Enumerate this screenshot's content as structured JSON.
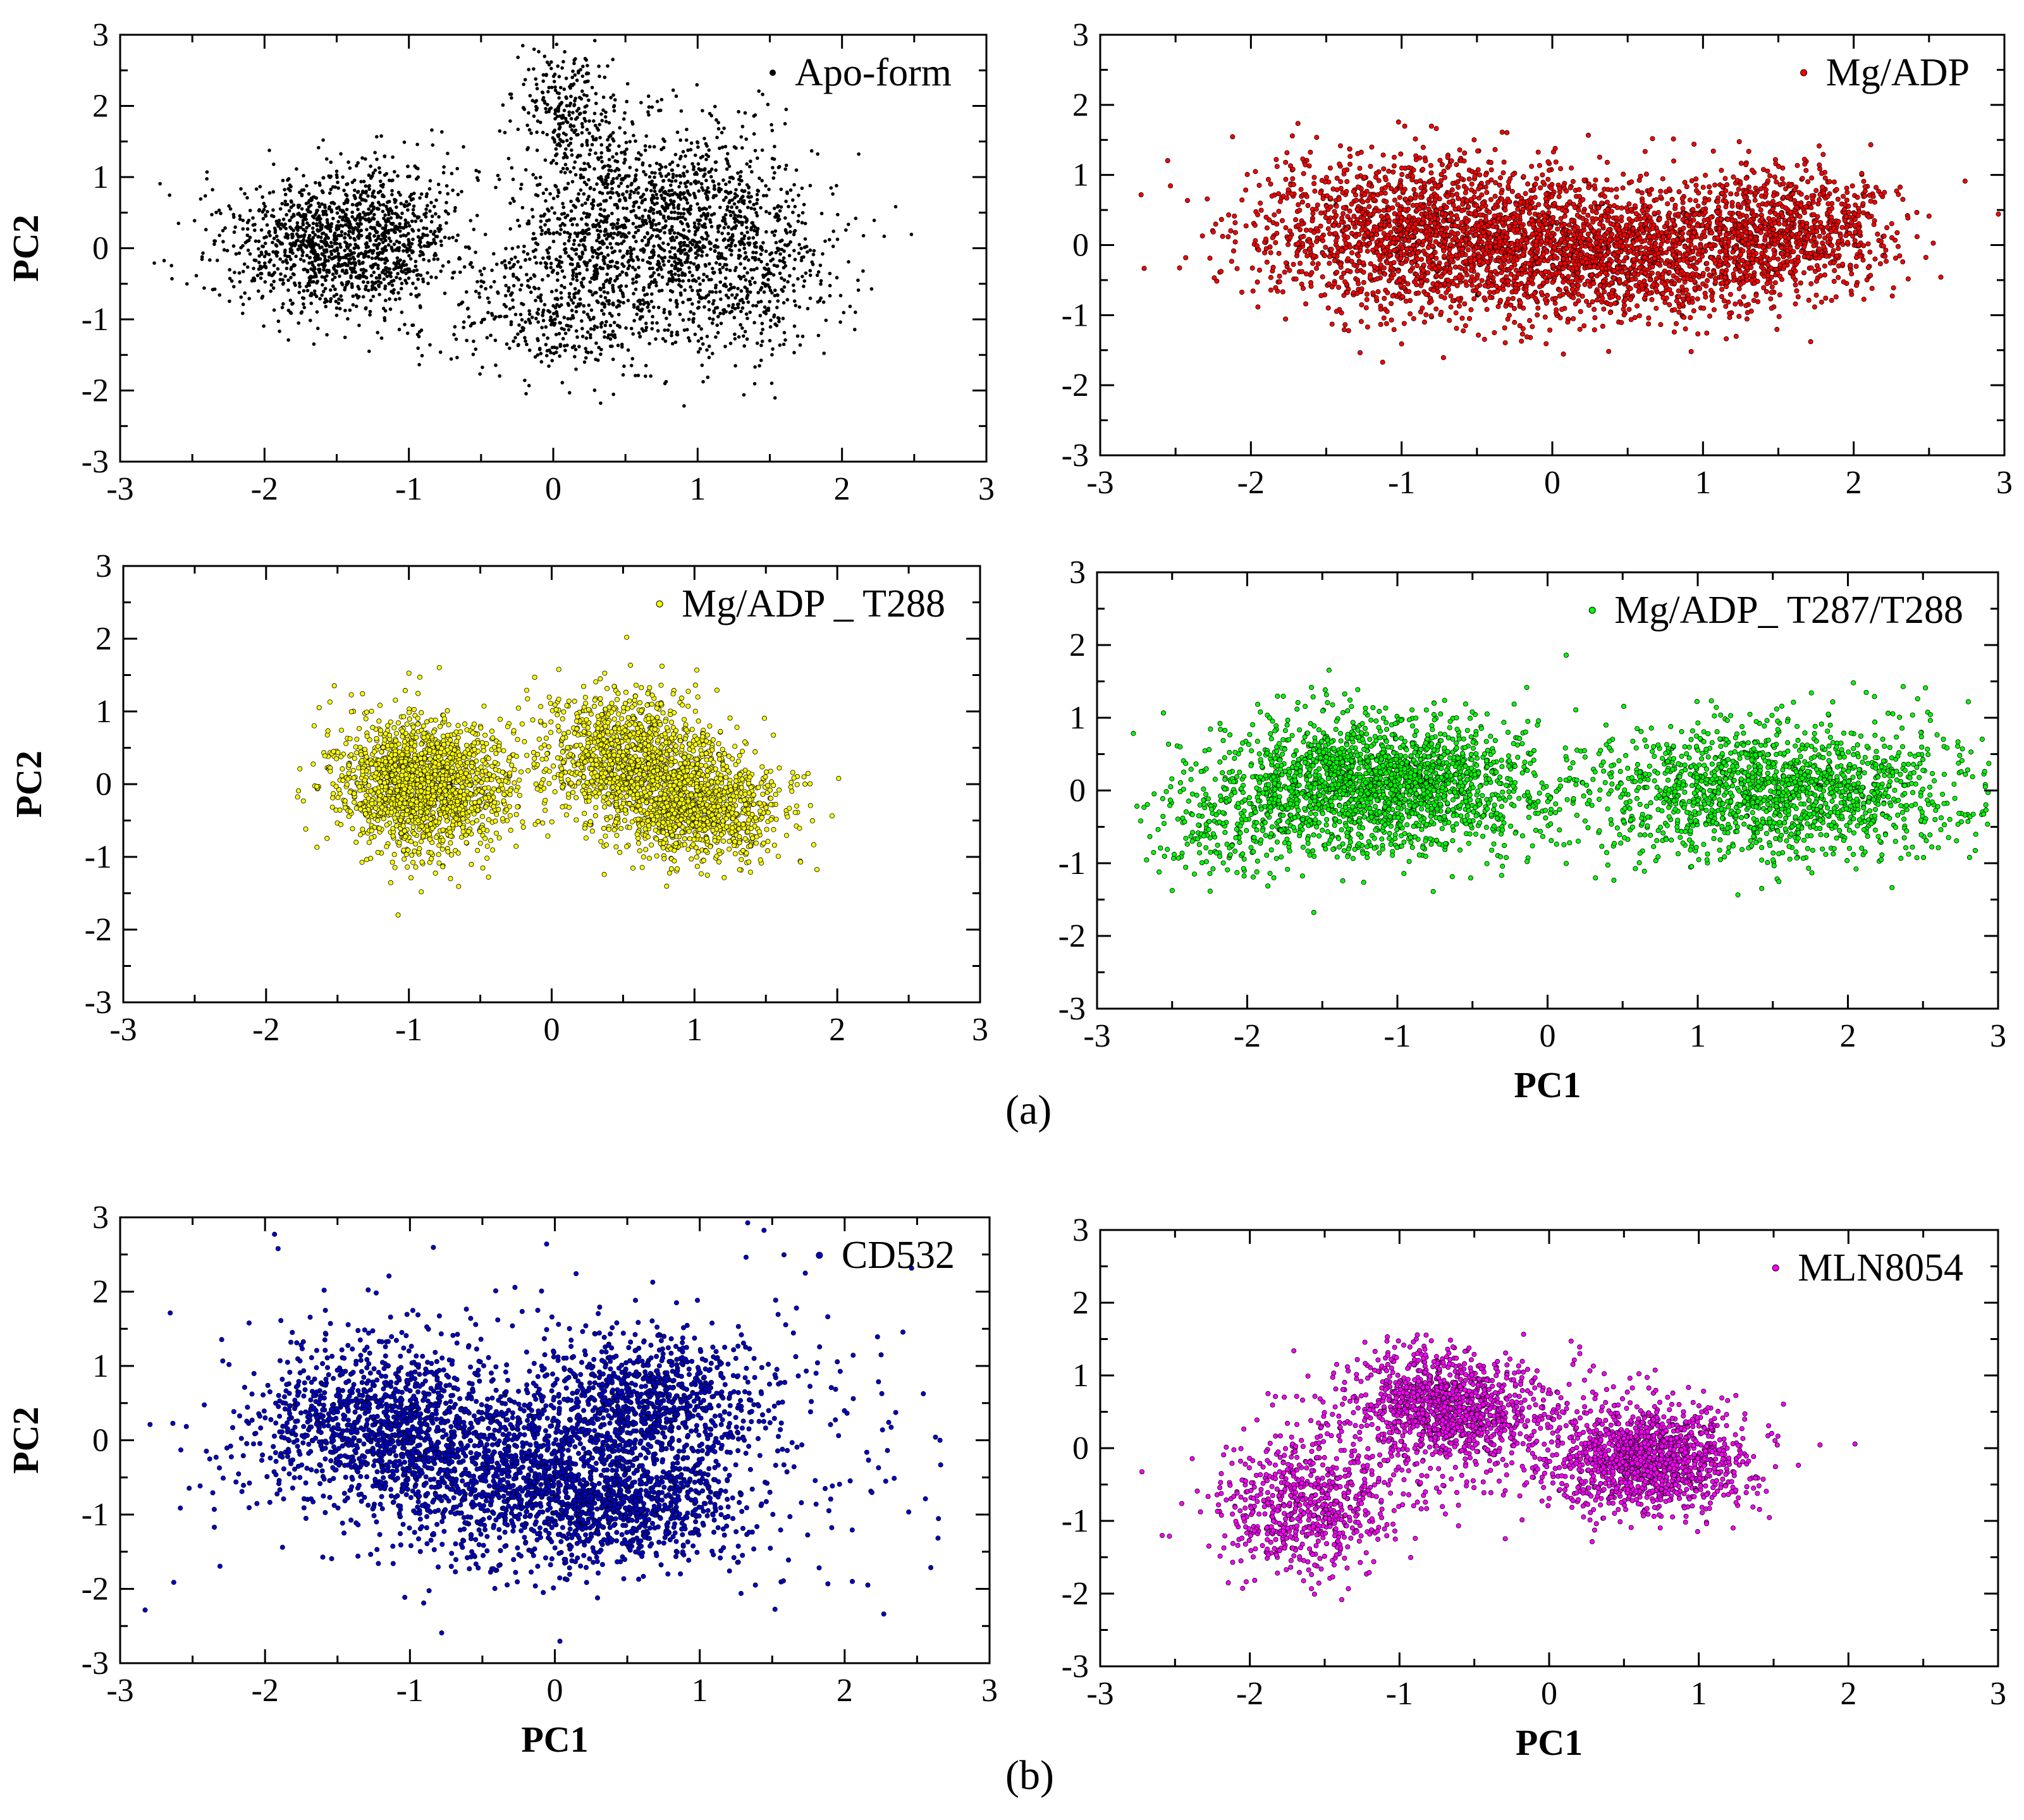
{
  "figure": {
    "label_a": "(a)",
    "label_b": "(b)"
  },
  "chart_data": [
    {
      "id": "apo",
      "type": "scatter",
      "title": "",
      "legend": "Apo-form",
      "legend_position": "top-right",
      "xlabel": "",
      "ylabel": "PC2",
      "xlim": [
        -3,
        3
      ],
      "ylim": [
        -3,
        3
      ],
      "xticks": [
        -3,
        -2,
        -1,
        0,
        1,
        2,
        3
      ],
      "yticks": [
        -3,
        -2,
        -1,
        0,
        1,
        2,
        3
      ],
      "grid": false,
      "color": "#000000",
      "point_count": 4000,
      "clusters": [
        {
          "cx": -1.55,
          "cy": 0.05,
          "sx": 0.38,
          "sy": 0.5,
          "weight": 0.3
        },
        {
          "cx": -1.05,
          "cy": 0.3,
          "sx": 0.2,
          "sy": 0.6,
          "weight": 0.06
        },
        {
          "cx": 0.75,
          "cy": 0.45,
          "sx": 0.5,
          "sy": 0.6,
          "weight": 0.34
        },
        {
          "cx": 0.2,
          "cy": -0.8,
          "sx": 0.45,
          "sy": 0.5,
          "weight": 0.15
        },
        {
          "cx": 1.4,
          "cy": -0.55,
          "sx": 0.3,
          "sy": 0.5,
          "weight": 0.08
        },
        {
          "cx": 0.1,
          "cy": 1.9,
          "sx": 0.2,
          "sy": 0.4,
          "weight": 0.07
        }
      ]
    },
    {
      "id": "mgadp",
      "type": "scatter",
      "title": "",
      "legend": "Mg/ADP",
      "legend_position": "top-right",
      "xlabel": "",
      "ylabel": "",
      "xlim": [
        -3,
        3
      ],
      "ylim": [
        -3,
        3
      ],
      "xticks": [
        -3,
        -2,
        -1,
        0,
        1,
        2,
        3
      ],
      "yticks": [
        -3,
        -2,
        -1,
        0,
        1,
        2,
        3
      ],
      "grid": false,
      "color": "#ff0000",
      "point_count": 4200,
      "clusters": [
        {
          "cx": -0.8,
          "cy": 0.15,
          "sx": 0.6,
          "sy": 0.55,
          "weight": 0.45
        },
        {
          "cx": 0.6,
          "cy": -0.1,
          "sx": 0.65,
          "sy": 0.45,
          "weight": 0.4
        },
        {
          "cx": 1.6,
          "cy": 0.3,
          "sx": 0.35,
          "sy": 0.4,
          "weight": 0.15
        }
      ]
    },
    {
      "id": "t288",
      "type": "scatter",
      "title": "",
      "legend": "Mg/ADP _ T288",
      "legend_position": "top-right",
      "xlabel": "",
      "ylabel": "PC2",
      "xlim": [
        -3,
        3
      ],
      "ylim": [
        -3,
        3
      ],
      "xticks": [
        -3,
        -2,
        -1,
        0,
        1,
        2,
        3
      ],
      "yticks": [
        -3,
        -2,
        -1,
        0,
        1,
        2,
        3
      ],
      "grid": false,
      "color": "#ffff00",
      "point_count": 3800,
      "clusters": [
        {
          "cx": -0.9,
          "cy": 0.0,
          "sx": 0.3,
          "sy": 0.45,
          "weight": 0.45
        },
        {
          "cx": 0.55,
          "cy": 0.35,
          "sx": 0.3,
          "sy": 0.45,
          "weight": 0.3
        },
        {
          "cx": 1.05,
          "cy": -0.35,
          "sx": 0.3,
          "sy": 0.35,
          "weight": 0.25
        }
      ]
    },
    {
      "id": "t287t288",
      "type": "scatter",
      "title": "",
      "legend": "Mg/ADP_ T287/T288",
      "legend_position": "top-right",
      "xlabel": "PC1",
      "ylabel": "",
      "xlim": [
        -3,
        3
      ],
      "ylim": [
        -3,
        3
      ],
      "xticks": [
        -3,
        -2,
        -1,
        0,
        1,
        2,
        3
      ],
      "yticks": [
        -3,
        -2,
        -1,
        0,
        1,
        2,
        3
      ],
      "grid": false,
      "color": "#00ff00",
      "point_count": 3800,
      "clusters": [
        {
          "cx": -1.1,
          "cy": 0.1,
          "sx": 0.5,
          "sy": 0.45,
          "weight": 0.52
        },
        {
          "cx": -2.1,
          "cy": -0.5,
          "sx": 0.3,
          "sy": 0.4,
          "weight": 0.06
        },
        {
          "cx": 1.5,
          "cy": 0.0,
          "sx": 0.65,
          "sy": 0.45,
          "weight": 0.42
        }
      ]
    },
    {
      "id": "cd532",
      "type": "scatter",
      "title": "",
      "legend": "CD532",
      "legend_position": "top-right",
      "xlabel": "PC1",
      "ylabel": "PC2",
      "xlim": [
        -3,
        3
      ],
      "ylim": [
        -3,
        3
      ],
      "xticks": [
        -3,
        -2,
        -1,
        0,
        1,
        2,
        3
      ],
      "yticks": [
        -3,
        -2,
        -1,
        0,
        1,
        2,
        3
      ],
      "grid": false,
      "color": "#0000cc",
      "point_count": 4200,
      "clusters": [
        {
          "cx": -1.2,
          "cy": 0.2,
          "sx": 0.45,
          "sy": 0.5,
          "weight": 0.25
        },
        {
          "cx": -0.2,
          "cy": -0.5,
          "sx": 0.5,
          "sy": 0.55,
          "weight": 0.22
        },
        {
          "cx": 0.5,
          "cy": -0.9,
          "sx": 0.4,
          "sy": 0.35,
          "weight": 0.15
        },
        {
          "cx": 0.7,
          "cy": 0.5,
          "sx": 0.35,
          "sy": 0.45,
          "weight": 0.18
        },
        {
          "cx": 0.0,
          "cy": 0.0,
          "sx": 1.2,
          "sy": 1.0,
          "weight": 0.2
        }
      ]
    },
    {
      "id": "mln8054",
      "type": "scatter",
      "title": "",
      "legend": "MLN8054",
      "legend_position": "top-right",
      "xlabel": "PC1",
      "ylabel": "",
      "xlim": [
        -3,
        3
      ],
      "ylim": [
        -3,
        3
      ],
      "xticks": [
        -3,
        -2,
        -1,
        0,
        1,
        2,
        3
      ],
      "yticks": [
        -3,
        -2,
        -1,
        0,
        1,
        2,
        3
      ],
      "grid": false,
      "color": "#ff00ff",
      "point_count": 3400,
      "clusters": [
        {
          "cx": -0.7,
          "cy": 0.6,
          "sx": 0.3,
          "sy": 0.35,
          "weight": 0.3
        },
        {
          "cx": 0.65,
          "cy": -0.15,
          "sx": 0.32,
          "sy": 0.35,
          "weight": 0.4
        },
        {
          "cx": -1.6,
          "cy": -0.8,
          "sx": 0.3,
          "sy": 0.45,
          "weight": 0.2
        },
        {
          "cx": -0.5,
          "cy": 0.2,
          "sx": 0.6,
          "sy": 0.5,
          "weight": 0.1
        }
      ]
    }
  ]
}
